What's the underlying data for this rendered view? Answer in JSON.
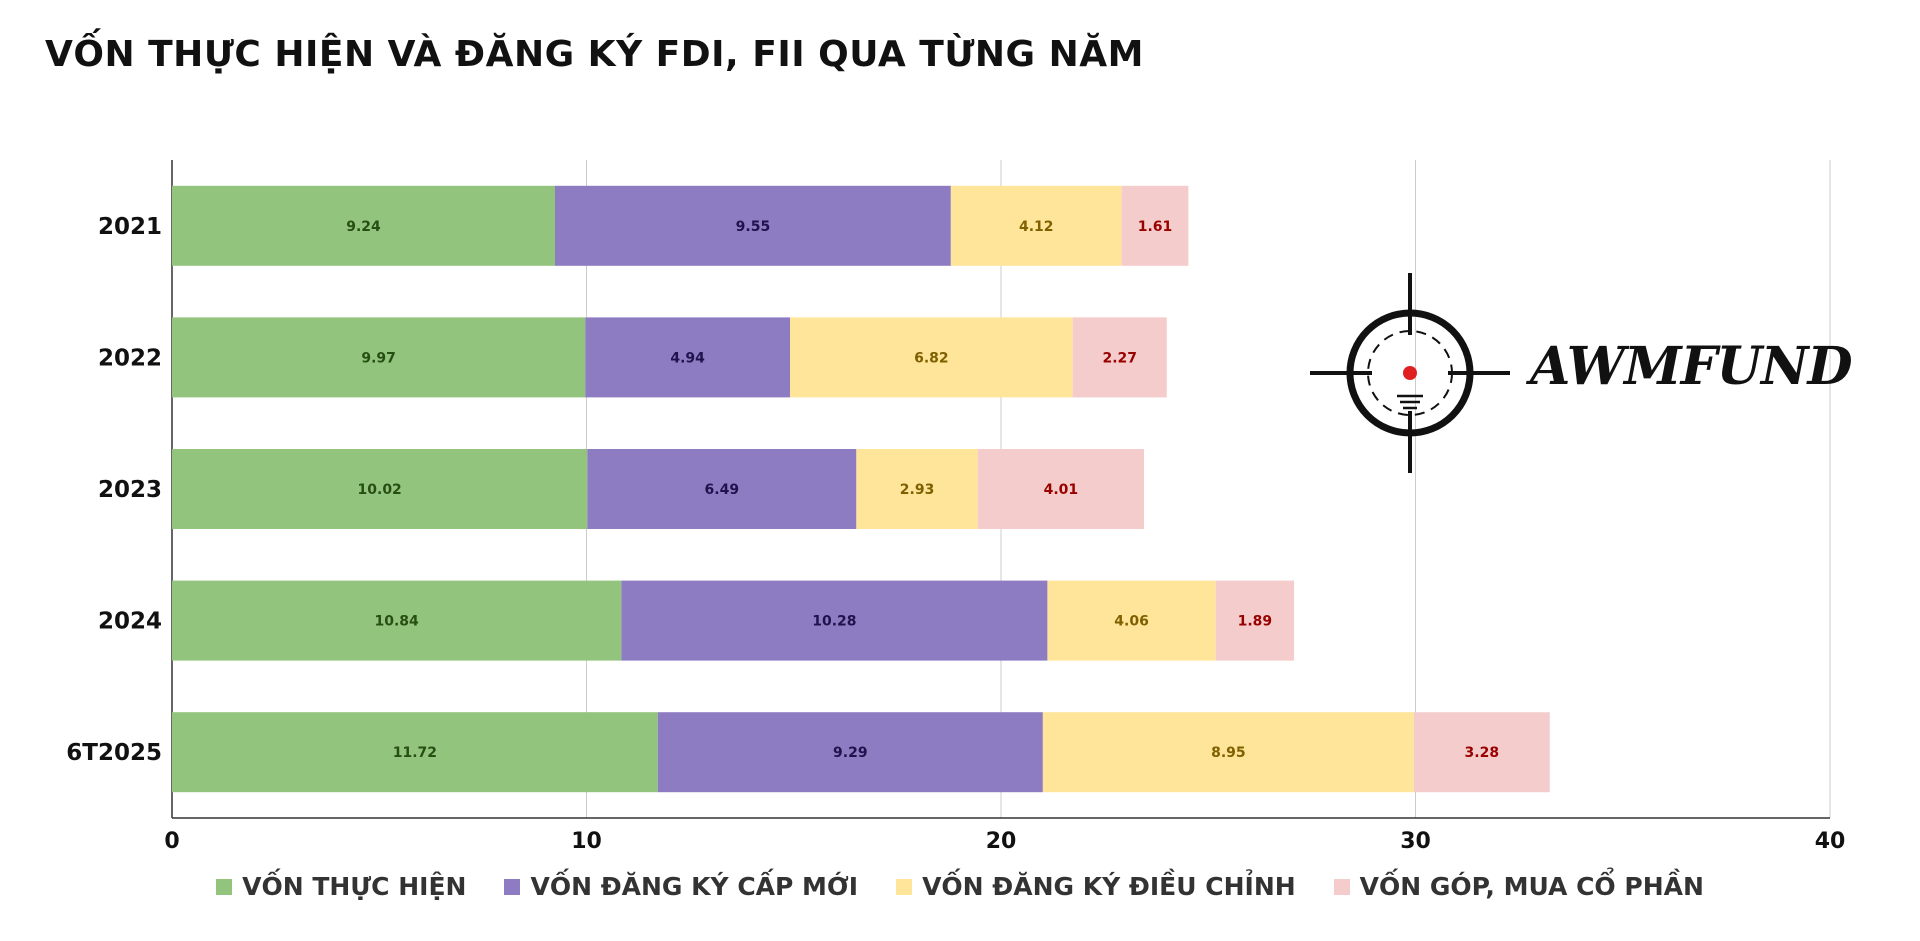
{
  "title": "VỐN THỰC HIỆN VÀ ĐĂNG KÝ FDI, FII QUA TỪNG NĂM",
  "logo": {
    "text": "AWMFUND"
  },
  "chart_data": {
    "type": "bar",
    "orientation": "horizontal",
    "stacked": true,
    "categories": [
      "2021",
      "2022",
      "2023",
      "2024",
      "6T2025"
    ],
    "series": [
      {
        "name": "VỐN THỰC HIỆN",
        "color": "#93c47d",
        "label_color": "#274e13",
        "values": [
          9.24,
          9.97,
          10.02,
          10.84,
          11.72
        ]
      },
      {
        "name": "VỐN ĐĂNG KÝ CẤP MỚI",
        "color": "#8e7cc3",
        "label_color": "#20124d",
        "values": [
          9.55,
          4.94,
          6.49,
          10.28,
          9.29
        ]
      },
      {
        "name": "VỐN ĐĂNG KÝ ĐIỀU CHỈNH",
        "color": "#ffe599",
        "label_color": "#7f6000",
        "values": [
          4.12,
          6.82,
          2.93,
          4.06,
          8.95
        ]
      },
      {
        "name": "VỐN GÓP, MUA CỔ PHẦN",
        "color": "#f4cccc",
        "label_color": "#990000",
        "values": [
          1.61,
          2.27,
          4.01,
          1.89,
          3.28
        ]
      }
    ],
    "xlim": [
      0,
      40
    ],
    "xticks": [
      "0",
      "10",
      "20",
      "30",
      "40"
    ],
    "grid": true,
    "legend_position": "bottom"
  }
}
